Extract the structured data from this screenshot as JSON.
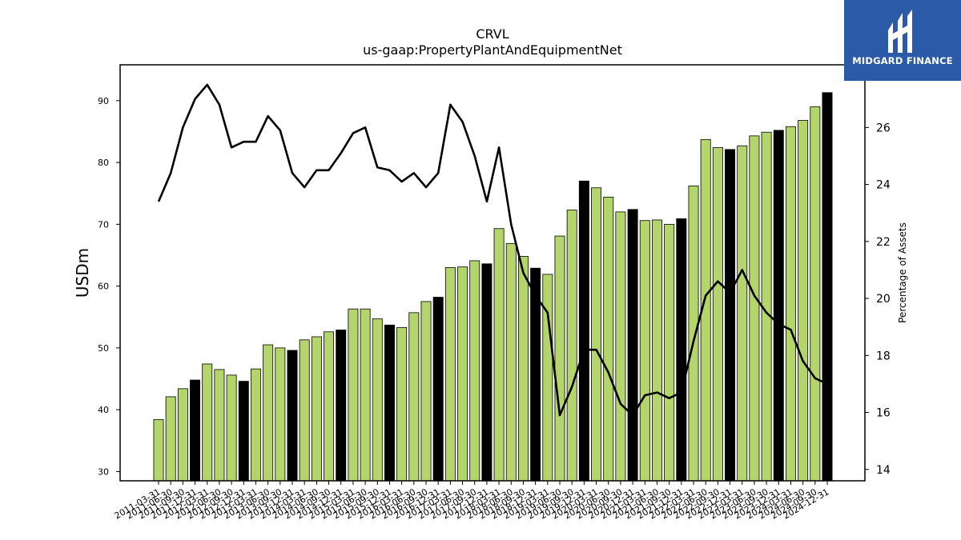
{
  "chart_data": {
    "type": "bar",
    "title": "CRVL",
    "subtitle": "us-gaap:PropertyPlantAndEquipmentNet",
    "ylabel": "USDm",
    "y2label": "Percentage of Assets",
    "ylim": [
      28.5,
      95.8
    ],
    "y2lim": [
      13.6,
      28.2
    ],
    "yticks": [
      30,
      40,
      50,
      60,
      70,
      80,
      90
    ],
    "y2ticks": [
      14,
      16,
      18,
      20,
      22,
      24,
      26
    ],
    "categories": [
      "2011-03-31",
      "2011-06-30",
      "2011-09-30",
      "2011-12-31",
      "2012-03-31",
      "2012-06-30",
      "2012-09-30",
      "2012-12-31",
      "2013-03-31",
      "2013-06-30",
      "2013-09-30",
      "2013-12-31",
      "2014-03-31",
      "2014-06-30",
      "2014-09-30",
      "2014-12-31",
      "2015-03-31",
      "2015-06-30",
      "2015-09-30",
      "2015-12-31",
      "2016-03-31",
      "2016-06-30",
      "2016-09-30",
      "2016-12-31",
      "2017-03-31",
      "2017-06-30",
      "2017-09-30",
      "2017-12-31",
      "2018-03-31",
      "2018-06-30",
      "2018-09-30",
      "2018-12-31",
      "2019-03-31",
      "2019-06-30",
      "2019-09-30",
      "2019-12-31",
      "2020-03-31",
      "2020-06-30",
      "2020-09-30",
      "2020-12-31",
      "2021-03-31",
      "2021-06-30",
      "2021-09-30",
      "2021-12-31",
      "2022-03-31",
      "2022-06-30",
      "2022-09-30",
      "2022-12-31",
      "2023-03-31",
      "2023-06-30",
      "2023-09-30",
      "2023-12-31",
      "2024-03-31",
      "2024-06-30",
      "2024-09-30",
      "2024-12-31"
    ],
    "series": [
      {
        "type": "bar",
        "axis": "left",
        "values": [
          38.4,
          42.1,
          43.4,
          44.8,
          47.4,
          46.5,
          45.6,
          44.6,
          46.6,
          50.5,
          50.0,
          49.6,
          51.3,
          51.8,
          52.6,
          52.9,
          56.3,
          56.3,
          54.7,
          53.7,
          53.3,
          55.7,
          57.5,
          58.2,
          63.0,
          63.1,
          64.1,
          63.6,
          69.3,
          66.9,
          64.8,
          62.9,
          61.9,
          68.1,
          72.3,
          77.0,
          75.9,
          74.4,
          72.0,
          72.4,
          70.6,
          70.7,
          70.0,
          70.9,
          76.2,
          83.7,
          82.4,
          82.1,
          82.7,
          84.3,
          84.9,
          85.2,
          85.8,
          86.8,
          89.0,
          91.3
        ]
      },
      {
        "type": "line",
        "axis": "right",
        "values": [
          23.4,
          24.4,
          26.0,
          27.0,
          27.5,
          26.8,
          25.3,
          25.5,
          25.5,
          26.4,
          25.9,
          24.4,
          23.9,
          24.5,
          24.5,
          25.1,
          25.8,
          26.0,
          24.6,
          24.5,
          24.1,
          24.4,
          23.9,
          24.4,
          26.8,
          26.2,
          25.0,
          23.4,
          25.3,
          22.6,
          20.9,
          20.1,
          19.5,
          15.9,
          16.9,
          18.2,
          18.2,
          17.4,
          16.3,
          15.9,
          16.6,
          16.7,
          16.5,
          16.7,
          18.5,
          20.1,
          20.6,
          20.2,
          21.0,
          20.1,
          19.5,
          19.1,
          18.9,
          17.8,
          17.2,
          17.0
        ]
      }
    ],
    "bar_colors": {
      "normal": "#b3d56c",
      "quarter_end": "#000000",
      "edge": "#000000"
    },
    "line_color": "#000000",
    "legend": "none",
    "grid": false
  },
  "logo": {
    "text": "MIDGARD FINANCE",
    "background": "#2b5aa8",
    "foreground": "#ffffff"
  }
}
